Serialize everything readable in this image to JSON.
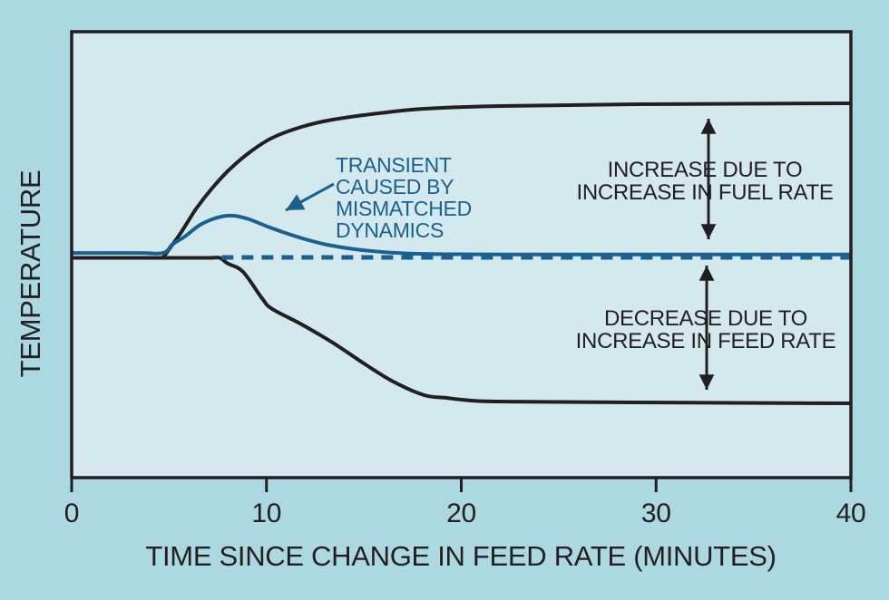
{
  "figure": {
    "colors": {
      "background_outer": "#abd8e1",
      "background_plot": "#d3e9ee",
      "black_ink": "#231f20",
      "accent_blue": "#1b6190"
    }
  },
  "chart_data": {
    "type": "line",
    "title": "",
    "xlabel": "TIME SINCE CHANGE IN FEED RATE (MINUTES)",
    "ylabel": "TEMPERATURE",
    "xlim": [
      0,
      40
    ],
    "ylim_note": "y axis unscaled; values are relative temperature, baseline = 0, final fuel-rate rise = +1, final feed-rate drop = -1",
    "grid": false,
    "legend": false,
    "x_ticks": [
      {
        "value": 0,
        "label": "0"
      },
      {
        "value": 10,
        "label": "10"
      },
      {
        "value": 20,
        "label": "20"
      },
      {
        "value": 30,
        "label": "30"
      },
      {
        "value": 40,
        "label": "40"
      }
    ],
    "series": [
      {
        "name": "increase-due-to-fuel-rate",
        "color": "black",
        "style": "solid",
        "points": [
          [
            4.7,
            0.0
          ],
          [
            5.6,
            0.164
          ],
          [
            6.4,
            0.327
          ],
          [
            7.2,
            0.461
          ],
          [
            8.1,
            0.588
          ],
          [
            9.2,
            0.709
          ],
          [
            10.3,
            0.8
          ],
          [
            11.8,
            0.873
          ],
          [
            13.4,
            0.921
          ],
          [
            15.8,
            0.964
          ],
          [
            18.1,
            0.994
          ],
          [
            22,
            1.012
          ],
          [
            29,
            1.024
          ],
          [
            40,
            1.03
          ]
        ]
      },
      {
        "name": "decrease-due-to-feed-rate",
        "color": "black",
        "style": "solid",
        "points": [
          [
            0,
            -0.003
          ],
          [
            4,
            -0.003
          ],
          [
            7,
            -0.003
          ],
          [
            7.6,
            -0.003
          ],
          [
            8,
            -0.04
          ],
          [
            8.8,
            -0.097
          ],
          [
            9.8,
            -0.279
          ],
          [
            10.3,
            -0.345
          ],
          [
            11.8,
            -0.448
          ],
          [
            13.4,
            -0.57
          ],
          [
            15,
            -0.709
          ],
          [
            16.5,
            -0.83
          ],
          [
            18.1,
            -0.921
          ],
          [
            19.2,
            -0.939
          ],
          [
            20.6,
            -0.958
          ],
          [
            22.4,
            -0.964
          ],
          [
            29,
            -0.97
          ],
          [
            40,
            -0.976
          ]
        ]
      },
      {
        "name": "baseline-setpoint",
        "color": "blue",
        "style": "dashed",
        "points": [
          [
            7.7,
            0
          ],
          [
            40,
            0
          ]
        ]
      },
      {
        "name": "transient-combined-response",
        "color": "blue",
        "style": "solid",
        "points": [
          [
            0,
            0.03
          ],
          [
            3.5,
            0.03
          ],
          [
            4.7,
            0.03
          ],
          [
            5.2,
            0.09
          ],
          [
            5.8,
            0.139
          ],
          [
            6.6,
            0.218
          ],
          [
            7.5,
            0.267
          ],
          [
            8.3,
            0.279
          ],
          [
            9.1,
            0.255
          ],
          [
            10.3,
            0.194
          ],
          [
            11.7,
            0.133
          ],
          [
            13.1,
            0.085
          ],
          [
            15,
            0.048
          ],
          [
            17.3,
            0.026
          ],
          [
            22,
            0.02
          ],
          [
            30,
            0.02
          ],
          [
            40,
            0.02
          ]
        ]
      }
    ],
    "annotations": {
      "transient": {
        "color": "blue",
        "lines": [
          "TRANSIENT",
          "CAUSED BY",
          "MISMATCHED",
          "DYNAMICS"
        ]
      },
      "fuel": {
        "color": "black",
        "lines": [
          "INCREASE DUE TO",
          "INCREASE IN FUEL RATE"
        ]
      },
      "feed": {
        "color": "black",
        "lines": [
          "DECREASE DUE TO",
          "INCREASE IN FEED RATE"
        ]
      }
    }
  }
}
